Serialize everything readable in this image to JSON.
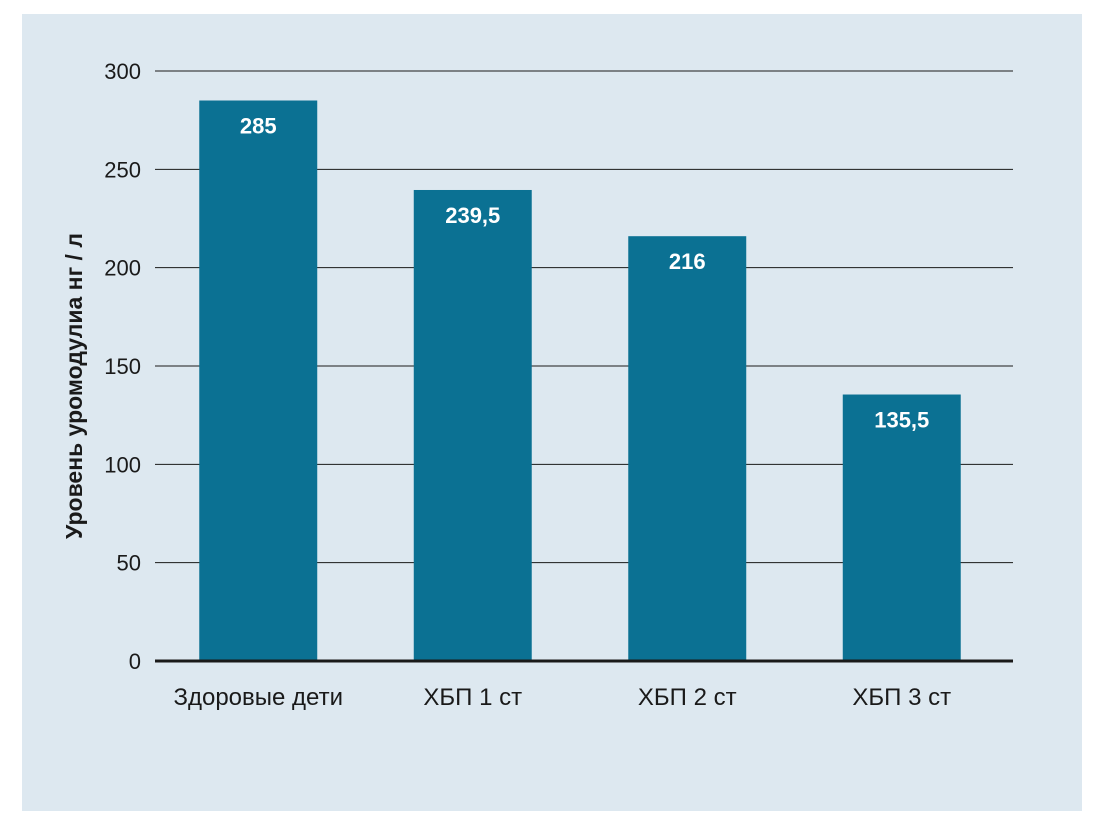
{
  "chart_data": {
    "type": "bar",
    "title": "",
    "xlabel": "",
    "ylabel": "Уровень уромодулиа нг / л",
    "categories": [
      "Здоровые дети",
      "ХБП 1 ст",
      "ХБП 2 ст",
      "ХБП 3 ст"
    ],
    "values": [
      285,
      239.5,
      216,
      135.5
    ],
    "value_labels": [
      "285",
      "239,5",
      "216",
      "135,5"
    ],
    "ylim": [
      0,
      300
    ],
    "yticks": [
      0,
      50,
      100,
      150,
      200,
      250,
      300
    ],
    "grid": true,
    "legend": "none",
    "colors": {
      "bar": "#0b7193",
      "background": "#dde8f0",
      "grid": "#1a1a1a",
      "value_text": "#ffffff"
    }
  }
}
